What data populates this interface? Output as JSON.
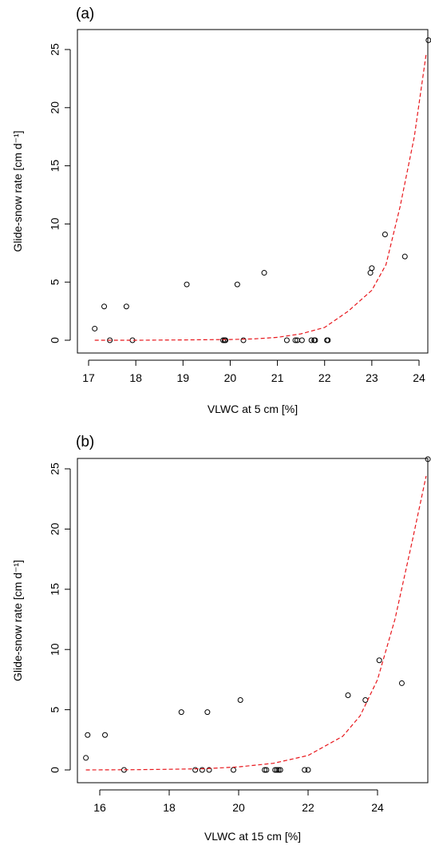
{
  "chart_data": [
    {
      "panel_label": "(a)",
      "type": "scatter",
      "xlabel": "VLWC at 5 cm [%]",
      "ylabel": "Glide-snow rate [cm d⁻¹]",
      "xlim": [
        17.0,
        24.3
      ],
      "ylim": [
        0,
        26
      ],
      "x_ticks": [
        "17",
        "18",
        "19",
        "20",
        "21",
        "22",
        "23",
        "24"
      ],
      "y_ticks": [
        "0",
        "5",
        "10",
        "15",
        "20",
        "25"
      ],
      "grid": false,
      "legend": "none",
      "series": [
        {
          "marker": "open-circle",
          "color": "#000000",
          "points": [
            [
              17.13,
              1.0
            ],
            [
              17.33,
              2.9
            ],
            [
              17.45,
              0.0
            ],
            [
              17.8,
              2.9
            ],
            [
              17.93,
              0.0
            ],
            [
              19.08,
              4.8
            ],
            [
              19.85,
              0.0
            ],
            [
              19.88,
              0.0
            ],
            [
              19.9,
              0.0
            ],
            [
              20.15,
              4.8
            ],
            [
              20.28,
              0.0
            ],
            [
              20.72,
              5.8
            ],
            [
              21.2,
              0.0
            ],
            [
              21.38,
              0.0
            ],
            [
              21.42,
              0.0
            ],
            [
              21.52,
              0.0
            ],
            [
              21.72,
              0.0
            ],
            [
              21.78,
              0.0
            ],
            [
              21.8,
              0.0
            ],
            [
              22.05,
              0.0
            ],
            [
              22.07,
              0.0
            ],
            [
              22.97,
              5.8
            ],
            [
              23.0,
              6.2
            ],
            [
              23.28,
              9.1
            ],
            [
              23.7,
              7.2
            ],
            [
              24.2,
              25.8
            ]
          ]
        },
        {
          "style": "dashed-line",
          "color": "#e8161b",
          "points": [
            [
              17.13,
              0.0
            ],
            [
              18.0,
              0.0
            ],
            [
              19.0,
              0.03
            ],
            [
              20.0,
              0.06
            ],
            [
              20.5,
              0.12
            ],
            [
              21.0,
              0.25
            ],
            [
              21.5,
              0.55
            ],
            [
              22.0,
              1.1
            ],
            [
              22.5,
              2.5
            ],
            [
              23.0,
              4.3
            ],
            [
              23.3,
              6.5
            ],
            [
              23.6,
              11.5
            ],
            [
              23.9,
              17.5
            ],
            [
              24.15,
              24.6
            ]
          ]
        }
      ]
    },
    {
      "panel_label": "(b)",
      "type": "scatter",
      "xlabel": "VLWC at 15 cm [%]",
      "ylabel": "Glide-snow rate [cm d⁻¹]",
      "xlim": [
        15.5,
        25.6
      ],
      "ylim": [
        0,
        26
      ],
      "x_ticks": [
        "16",
        "18",
        "20",
        "22",
        "24"
      ],
      "y_ticks": [
        "0",
        "5",
        "10",
        "15",
        "20",
        "25"
      ],
      "grid": false,
      "legend": "none",
      "series": [
        {
          "marker": "open-circle",
          "color": "#000000",
          "points": [
            [
              15.6,
              1.0
            ],
            [
              15.65,
              2.9
            ],
            [
              16.15,
              2.9
            ],
            [
              16.7,
              0.0
            ],
            [
              18.35,
              4.8
            ],
            [
              18.75,
              0.0
            ],
            [
              18.95,
              0.0
            ],
            [
              19.1,
              4.8
            ],
            [
              19.15,
              0.0
            ],
            [
              19.85,
              0.0
            ],
            [
              20.05,
              5.8
            ],
            [
              20.75,
              0.0
            ],
            [
              20.8,
              0.0
            ],
            [
              21.05,
              0.0
            ],
            [
              21.1,
              0.0
            ],
            [
              21.15,
              0.0
            ],
            [
              21.2,
              0.0
            ],
            [
              21.9,
              0.0
            ],
            [
              22.0,
              0.0
            ],
            [
              23.15,
              6.2
            ],
            [
              23.65,
              5.8
            ],
            [
              24.05,
              9.1
            ],
            [
              24.7,
              7.2
            ],
            [
              25.45,
              25.8
            ]
          ]
        },
        {
          "style": "dashed-line",
          "color": "#e8161b",
          "points": [
            [
              15.6,
              0.0
            ],
            [
              17.0,
              0.02
            ],
            [
              18.0,
              0.05
            ],
            [
              19.0,
              0.1
            ],
            [
              20.0,
              0.25
            ],
            [
              21.0,
              0.55
            ],
            [
              22.0,
              1.2
            ],
            [
              23.0,
              2.8
            ],
            [
              23.5,
              4.5
            ],
            [
              24.0,
              7.5
            ],
            [
              24.5,
              12.5
            ],
            [
              25.0,
              19.0
            ],
            [
              25.4,
              24.4
            ]
          ]
        }
      ]
    }
  ]
}
